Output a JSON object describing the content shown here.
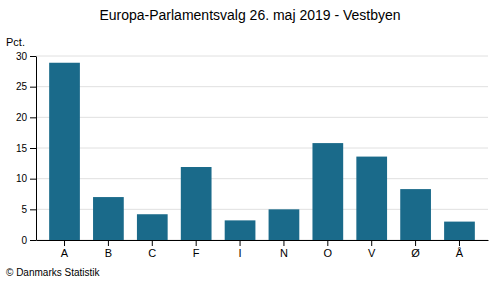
{
  "chart_data": {
    "type": "bar",
    "title": "Europa-Parlamentsvalg 26. maj 2019 - Vestbyen",
    "ylabel": "Pct.",
    "annotations": [
      "© Danmarks Statistik"
    ],
    "categories": [
      "A",
      "B",
      "C",
      "F",
      "I",
      "N",
      "O",
      "V",
      "Ø",
      "Å"
    ],
    "values": [
      28.9,
      7.0,
      4.2,
      11.9,
      3.2,
      5.0,
      15.8,
      13.6,
      8.3,
      3.0
    ],
    "color": "#1a6a8a",
    "ylim": [
      0,
      30
    ],
    "yticks": [
      0,
      5,
      10,
      15,
      20,
      25,
      30
    ],
    "grid": true
  }
}
